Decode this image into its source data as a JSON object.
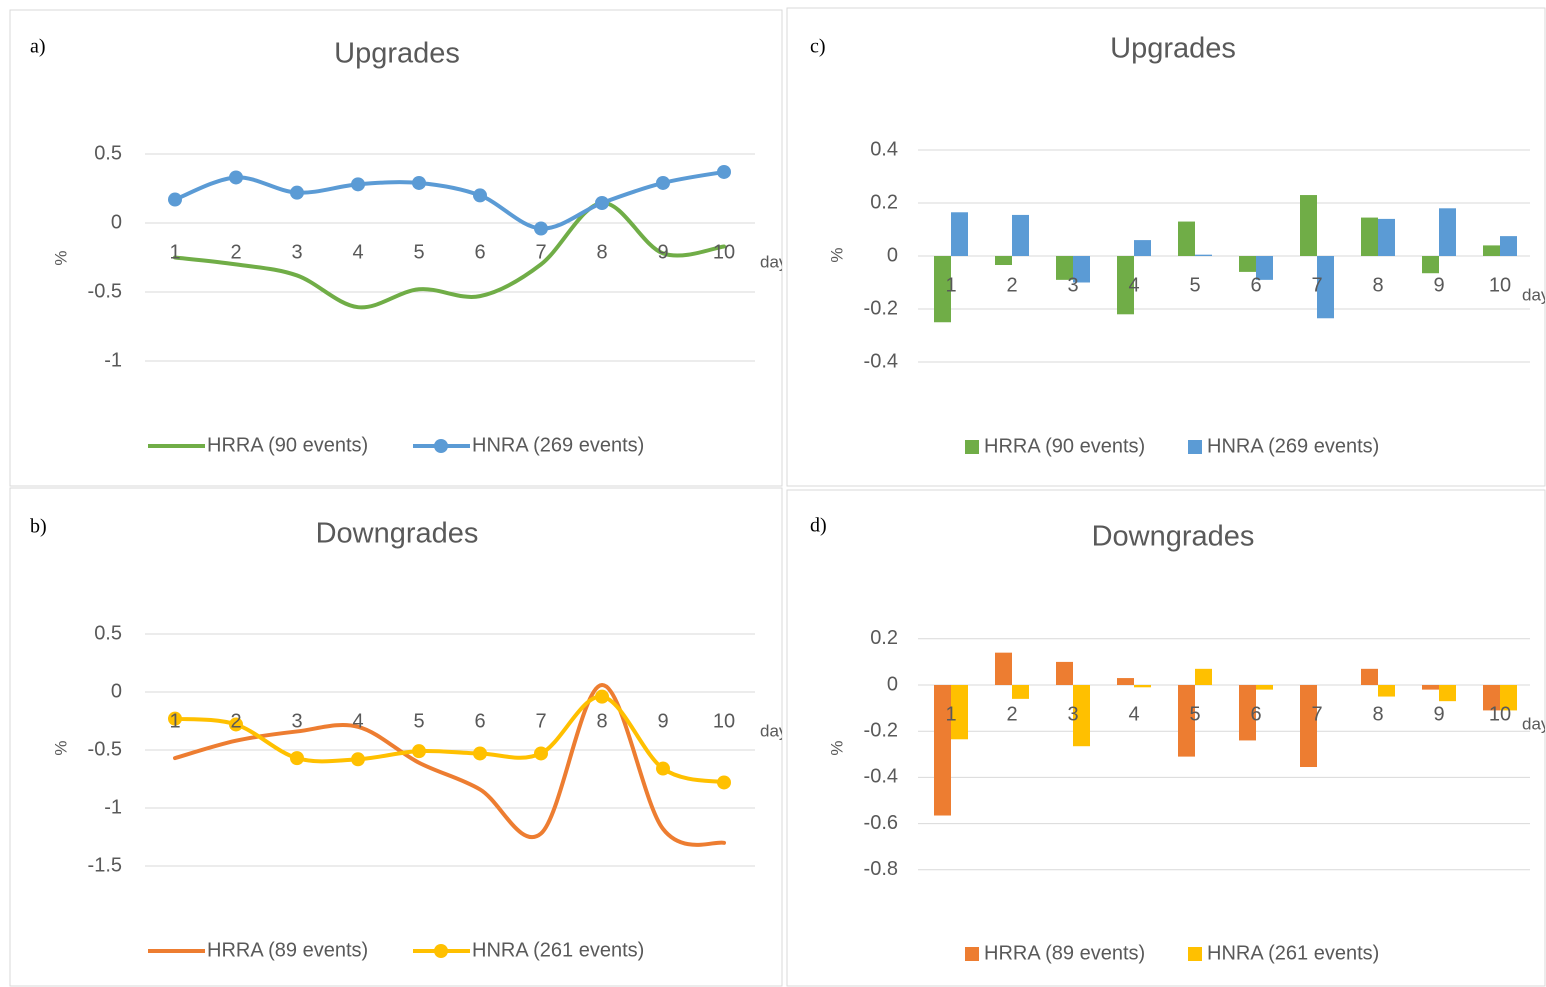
{
  "chart_data": [
    {
      "type": "line",
      "panel_label": "a)",
      "title": "Upgrades",
      "x_label": "day",
      "y_label": "%",
      "categories": [
        "1",
        "2",
        "3",
        "4",
        "5",
        "6",
        "7",
        "8",
        "9",
        "10"
      ],
      "ylim": [
        -1.5,
        0.7
      ],
      "yticks": [
        0.5,
        0,
        -0.5,
        -1
      ],
      "grid": true,
      "series": [
        {
          "name": "HRRA (90 events)",
          "color": "#70ad47",
          "markers": false,
          "values": [
            -0.25,
            -0.3,
            -0.38,
            -0.61,
            -0.48,
            -0.53,
            -0.3,
            0.145,
            -0.22,
            -0.17
          ]
        },
        {
          "name": "HNRA (269 events)",
          "color": "#5b9bd5",
          "markers": true,
          "values": [
            0.17,
            0.33,
            0.22,
            0.28,
            0.29,
            0.2,
            -0.04,
            0.145,
            0.29,
            0.37
          ]
        }
      ]
    },
    {
      "type": "bar",
      "panel_label": "c)",
      "title": "Upgrades",
      "x_label": "day",
      "y_label": "%",
      "categories": [
        "1",
        "2",
        "3",
        "4",
        "5",
        "6",
        "7",
        "8",
        "9",
        "10"
      ],
      "ylim": [
        -0.6,
        0.5
      ],
      "yticks": [
        0.4,
        0.2,
        0,
        -0.2,
        -0.4
      ],
      "grid": true,
      "series": [
        {
          "name": "HRRA (90 events)",
          "color": "#70ad47",
          "values": [
            -0.25,
            -0.034,
            -0.09,
            -0.22,
            0.13,
            -0.06,
            0.23,
            0.145,
            -0.065,
            0.04
          ]
        },
        {
          "name": "HNRA (269 events)",
          "color": "#5b9bd5",
          "values": [
            0.165,
            0.155,
            -0.1,
            0.06,
            0.005,
            -0.09,
            -0.235,
            0.14,
            0.18,
            0.075
          ]
        }
      ]
    },
    {
      "type": "line",
      "panel_label": "b)",
      "title": "Downgrades",
      "x_label": "day",
      "y_label": "%",
      "categories": [
        "1",
        "2",
        "3",
        "4",
        "5",
        "6",
        "7",
        "8",
        "9",
        "10"
      ],
      "ylim": [
        -2,
        0.8
      ],
      "yticks": [
        0.5,
        0,
        -0.5,
        -1,
        -1.5
      ],
      "grid": true,
      "series": [
        {
          "name": "HRRA (89 events)",
          "color": "#ed7d31",
          "markers": false,
          "values": [
            -0.57,
            -0.42,
            -0.34,
            -0.3,
            -0.61,
            -0.84,
            -1.22,
            0.06,
            -1.18,
            -1.3
          ]
        },
        {
          "name": "HNRA (261 events)",
          "color": "#ffc000",
          "markers": true,
          "values": [
            -0.23,
            -0.28,
            -0.57,
            -0.58,
            -0.51,
            -0.53,
            -0.53,
            -0.04,
            -0.66,
            -0.78
          ]
        }
      ]
    },
    {
      "type": "bar",
      "panel_label": "d)",
      "title": "Downgrades",
      "x_label": "day",
      "y_label": "%",
      "categories": [
        "1",
        "2",
        "3",
        "4",
        "5",
        "6",
        "7",
        "8",
        "9",
        "10"
      ],
      "ylim": [
        -1.0,
        0.3
      ],
      "yticks": [
        0.2,
        0,
        -0.2,
        -0.4,
        -0.6,
        -0.8
      ],
      "grid": true,
      "series": [
        {
          "name": "HRRA (89 events)",
          "color": "#ed7d31",
          "values": [
            -0.565,
            0.14,
            0.1,
            0.03,
            -0.31,
            -0.24,
            -0.355,
            0.07,
            -0.02,
            -0.11
          ]
        },
        {
          "name": "HNRA (261 events)",
          "color": "#ffc000",
          "values": [
            -0.235,
            -0.06,
            -0.265,
            -0.01,
            0.07,
            -0.02,
            0,
            -0.05,
            -0.07,
            -0.11
          ]
        }
      ]
    }
  ]
}
